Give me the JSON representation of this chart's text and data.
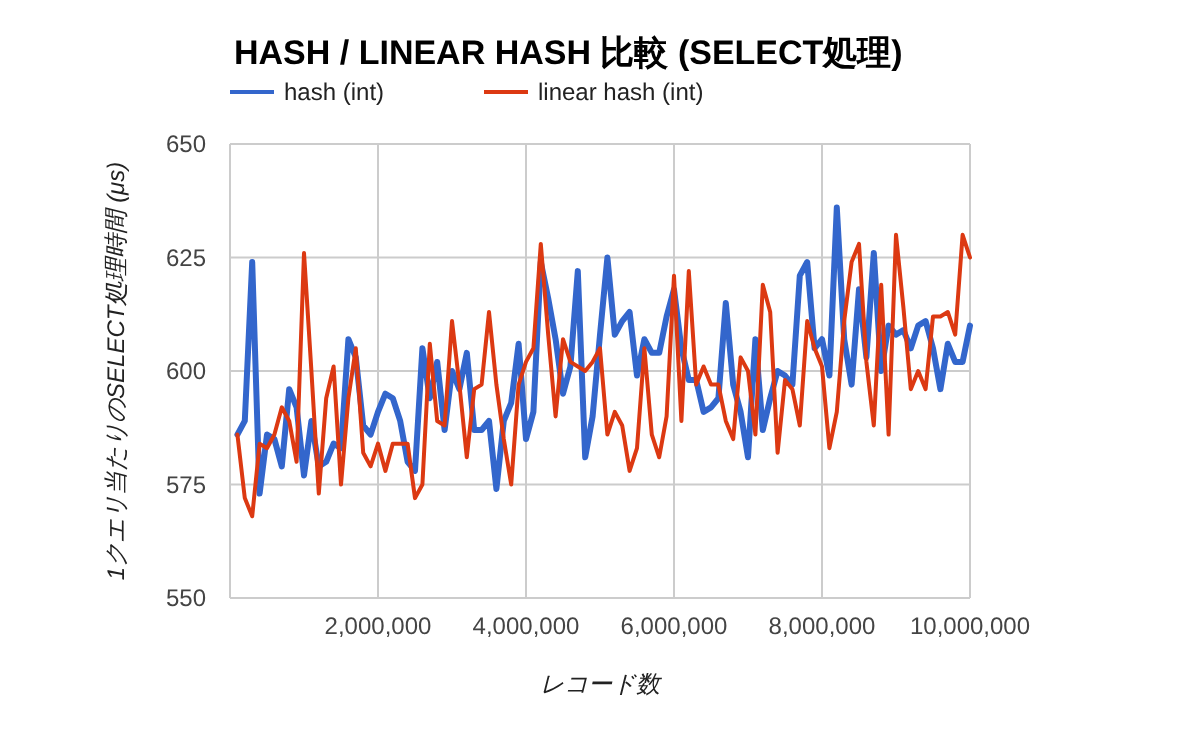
{
  "chart_data": {
    "type": "line",
    "title": "HASH / LINEAR HASH 比較 (SELECT処理)",
    "xlabel": "レコード数",
    "ylabel": "1クエリ当たりのSELECT処理時間 (μs)",
    "x": [
      100000,
      200000,
      300000,
      400000,
      500000,
      600000,
      700000,
      800000,
      900000,
      1000000,
      1100000,
      1200000,
      1300000,
      1400000,
      1500000,
      1600000,
      1700000,
      1800000,
      1900000,
      2000000,
      2100000,
      2200000,
      2300000,
      2400000,
      2500000,
      2600000,
      2700000,
      2800000,
      2900000,
      3000000,
      3100000,
      3200000,
      3300000,
      3400000,
      3500000,
      3600000,
      3700000,
      3800000,
      3900000,
      4000000,
      4100000,
      4200000,
      4300000,
      4400000,
      4500000,
      4600000,
      4700000,
      4800000,
      4900000,
      5000000,
      5100000,
      5200000,
      5300000,
      5400000,
      5500000,
      5600000,
      5700000,
      5800000,
      5900000,
      6000000,
      6100000,
      6200000,
      6300000,
      6400000,
      6500000,
      6600000,
      6700000,
      6800000,
      6900000,
      7000000,
      7100000,
      7200000,
      7300000,
      7400000,
      7500000,
      7600000,
      7700000,
      7800000,
      7900000,
      8000000,
      8100000,
      8200000,
      8300000,
      8400000,
      8500000,
      8600000,
      8700000,
      8800000,
      8900000,
      9000000,
      9100000,
      9200000,
      9300000,
      9400000,
      9500000,
      9600000,
      9700000,
      9800000,
      9900000,
      10000000
    ],
    "series": [
      {
        "name": "hash (int)",
        "color": "#3366cc",
        "values": [
          586,
          589,
          624,
          573,
          586,
          585,
          579,
          596,
          592,
          577,
          589,
          579,
          580,
          584,
          583,
          607,
          603,
          588,
          586,
          591,
          595,
          594,
          589,
          580,
          578,
          605,
          594,
          602,
          587,
          600,
          596,
          604,
          587,
          587,
          589,
          574,
          589,
          593,
          606,
          585,
          591,
          624,
          616,
          607,
          595,
          601,
          622,
          581,
          590,
          608,
          625,
          608,
          611,
          613,
          599,
          607,
          604,
          604,
          612,
          618,
          605,
          598,
          598,
          591,
          592,
          594,
          615,
          597,
          591,
          581,
          607,
          587,
          594,
          600,
          599,
          597,
          621,
          624,
          605,
          607,
          599,
          636,
          607,
          597,
          618,
          603,
          626,
          600,
          610,
          608,
          609,
          605,
          610,
          611,
          605,
          596,
          606,
          602,
          602,
          610
        ]
      },
      {
        "name": "linear hash (int)",
        "color": "#dc3912",
        "values": [
          586,
          572,
          568,
          584,
          583,
          586,
          592,
          589,
          580,
          626,
          600,
          573,
          594,
          601,
          575,
          594,
          605,
          582,
          579,
          584,
          578,
          584,
          584,
          584,
          572,
          575,
          606,
          589,
          588,
          611,
          597,
          581,
          596,
          597,
          613,
          597,
          585,
          575,
          597,
          602,
          605,
          628,
          608,
          590,
          607,
          602,
          601,
          600,
          602,
          605,
          586,
          591,
          588,
          578,
          583,
          605,
          586,
          581,
          590,
          621,
          589,
          622,
          597,
          601,
          597,
          597,
          589,
          585,
          603,
          600,
          586,
          619,
          613,
          582,
          598,
          596,
          588,
          611,
          605,
          601,
          583,
          591,
          611,
          624,
          628,
          602,
          588,
          619,
          586,
          630,
          614,
          596,
          600,
          596,
          612,
          612,
          613,
          608,
          630,
          625
        ]
      }
    ],
    "xlim": [
      0,
      10000000
    ],
    "xticks": [
      {
        "value": 2000000,
        "label": "2,000,000"
      },
      {
        "value": 4000000,
        "label": "4,000,000"
      },
      {
        "value": 6000000,
        "label": "6,000,000"
      },
      {
        "value": 8000000,
        "label": "8,000,000"
      },
      {
        "value": 10000000,
        "label": "10,000,000"
      }
    ],
    "ylim": [
      550,
      650
    ],
    "yticks": [
      550,
      575,
      600,
      625,
      650
    ],
    "grid": true,
    "legend": "top left",
    "marker": "none",
    "line_style": "solid"
  }
}
